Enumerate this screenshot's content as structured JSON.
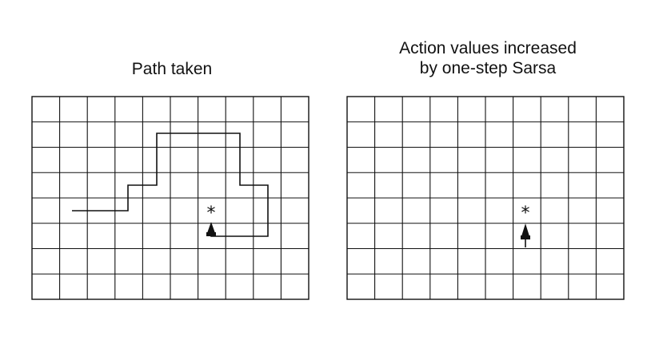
{
  "left_panel": {
    "title": "Path taken"
  },
  "right_panel": {
    "title_line1": "Action values increased",
    "title_line2": "by one-step Sarsa"
  },
  "grid": {
    "columns": 10,
    "rows": 8
  },
  "symbols": {
    "goal": "*",
    "agent": "▲"
  },
  "colors": {
    "grid_line": "#111111",
    "path": "#111111",
    "background": "#ffffff"
  }
}
